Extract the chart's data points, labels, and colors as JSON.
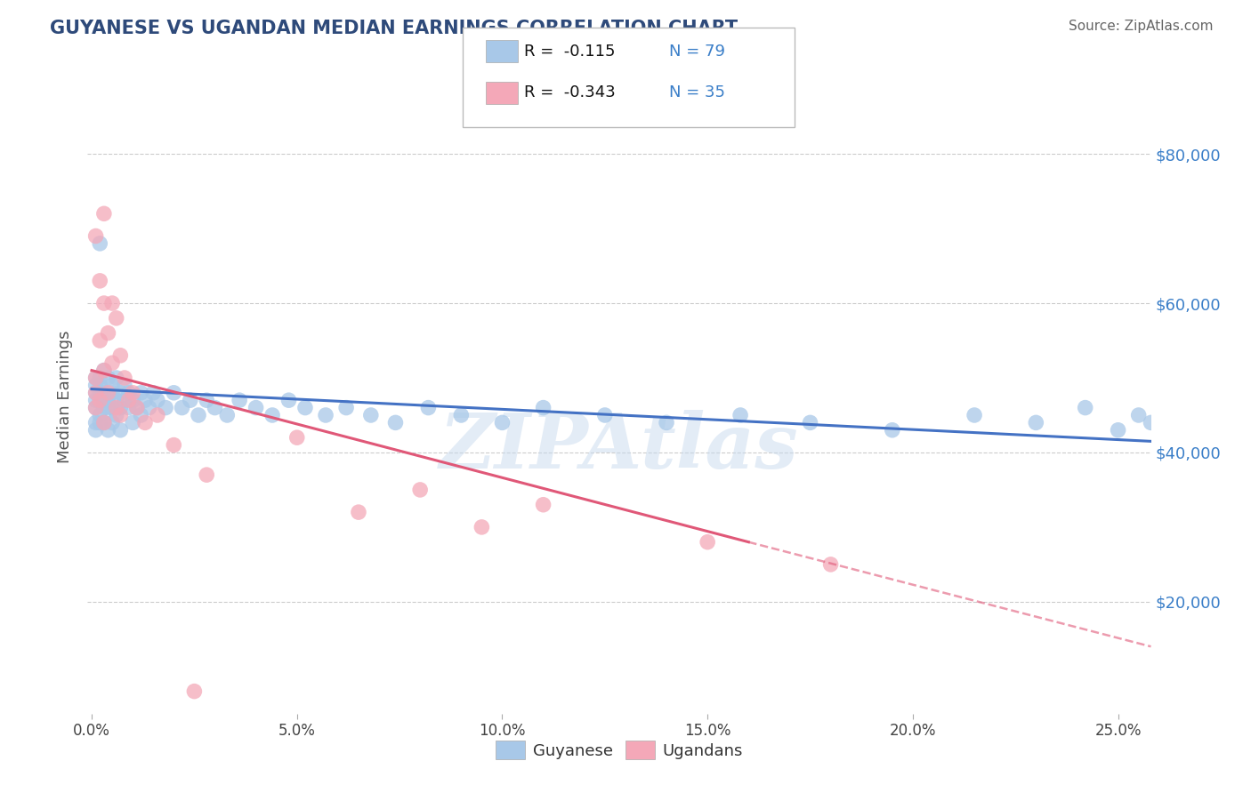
{
  "title": "GUYANESE VS UGANDAN MEDIAN EARNINGS CORRELATION CHART",
  "source": "Source: ZipAtlas.com",
  "ylabel": "Median Earnings",
  "y_tick_labels": [
    "$20,000",
    "$40,000",
    "$60,000",
    "$80,000"
  ],
  "y_ticks": [
    20000,
    40000,
    60000,
    80000
  ],
  "ylim": [
    5000,
    90000
  ],
  "xlim": [
    -0.001,
    0.258
  ],
  "watermark": "ZIPAtlas",
  "legend_R_guyanese": "-0.115",
  "legend_N_guyanese": "79",
  "legend_R_ugandans": "-0.343",
  "legend_N_ugandans": "35",
  "guyanese_label": "Guyanese",
  "ugandans_label": "Ugandans",
  "guyanese_color": "#a8c8e8",
  "ugandans_color": "#f4a8b8",
  "trend_guyanese_color": "#4472c4",
  "trend_ugandans_color": "#e05878",
  "title_color": "#2e4a7a",
  "source_color": "#666666",
  "background_color": "#ffffff",
  "grid_color": "#cccccc",
  "guyanese_x": [
    0.001,
    0.001,
    0.001,
    0.001,
    0.001,
    0.001,
    0.001,
    0.002,
    0.002,
    0.002,
    0.002,
    0.002,
    0.002,
    0.002,
    0.003,
    0.003,
    0.003,
    0.003,
    0.003,
    0.004,
    0.004,
    0.004,
    0.004,
    0.005,
    0.005,
    0.005,
    0.005,
    0.006,
    0.006,
    0.006,
    0.007,
    0.007,
    0.007,
    0.008,
    0.008,
    0.009,
    0.009,
    0.01,
    0.01,
    0.011,
    0.012,
    0.012,
    0.013,
    0.014,
    0.015,
    0.016,
    0.018,
    0.02,
    0.022,
    0.024,
    0.026,
    0.028,
    0.03,
    0.033,
    0.036,
    0.04,
    0.044,
    0.048,
    0.052,
    0.057,
    0.062,
    0.068,
    0.074,
    0.082,
    0.09,
    0.1,
    0.11,
    0.125,
    0.14,
    0.158,
    0.175,
    0.195,
    0.215,
    0.23,
    0.242,
    0.25,
    0.255,
    0.258,
    0.26
  ],
  "guyanese_y": [
    48000,
    46000,
    50000,
    44000,
    47000,
    49000,
    43000,
    50000,
    47000,
    48000,
    45000,
    68000,
    49000,
    44000,
    51000,
    47000,
    46000,
    48000,
    44000,
    50000,
    46000,
    47000,
    43000,
    49000,
    46000,
    48000,
    44000,
    47000,
    50000,
    45000,
    48000,
    46000,
    43000,
    47000,
    49000,
    46000,
    48000,
    47000,
    44000,
    46000,
    48000,
    45000,
    47000,
    46000,
    48000,
    47000,
    46000,
    48000,
    46000,
    47000,
    45000,
    47000,
    46000,
    45000,
    47000,
    46000,
    45000,
    47000,
    46000,
    45000,
    46000,
    45000,
    44000,
    46000,
    45000,
    44000,
    46000,
    45000,
    44000,
    45000,
    44000,
    43000,
    45000,
    44000,
    46000,
    43000,
    45000,
    44000,
    43000
  ],
  "ugandans_x": [
    0.001,
    0.001,
    0.001,
    0.001,
    0.002,
    0.002,
    0.002,
    0.003,
    0.003,
    0.003,
    0.003,
    0.004,
    0.004,
    0.005,
    0.005,
    0.006,
    0.006,
    0.007,
    0.007,
    0.008,
    0.009,
    0.01,
    0.011,
    0.013,
    0.016,
    0.02,
    0.028,
    0.05,
    0.065,
    0.08,
    0.095,
    0.11,
    0.15,
    0.18,
    0.025
  ],
  "ugandans_y": [
    50000,
    46000,
    69000,
    48000,
    63000,
    55000,
    47000,
    72000,
    60000,
    51000,
    44000,
    56000,
    48000,
    60000,
    52000,
    58000,
    46000,
    53000,
    45000,
    50000,
    47000,
    48000,
    46000,
    44000,
    45000,
    41000,
    37000,
    42000,
    32000,
    35000,
    30000,
    33000,
    28000,
    25000,
    8000
  ],
  "trend_guyanese_x0": 0.0,
  "trend_guyanese_y0": 48500,
  "trend_guyanese_x1": 0.258,
  "trend_guyanese_y1": 41500,
  "trend_ugandans_x0": 0.0,
  "trend_ugandans_y0": 51000,
  "trend_ugandans_x1": 0.16,
  "trend_ugandans_y1": 28000,
  "trend_ugandans_dash_x0": 0.16,
  "trend_ugandans_dash_y0": 28000,
  "trend_ugandans_dash_x1": 0.258,
  "trend_ugandans_dash_y1": 14000
}
